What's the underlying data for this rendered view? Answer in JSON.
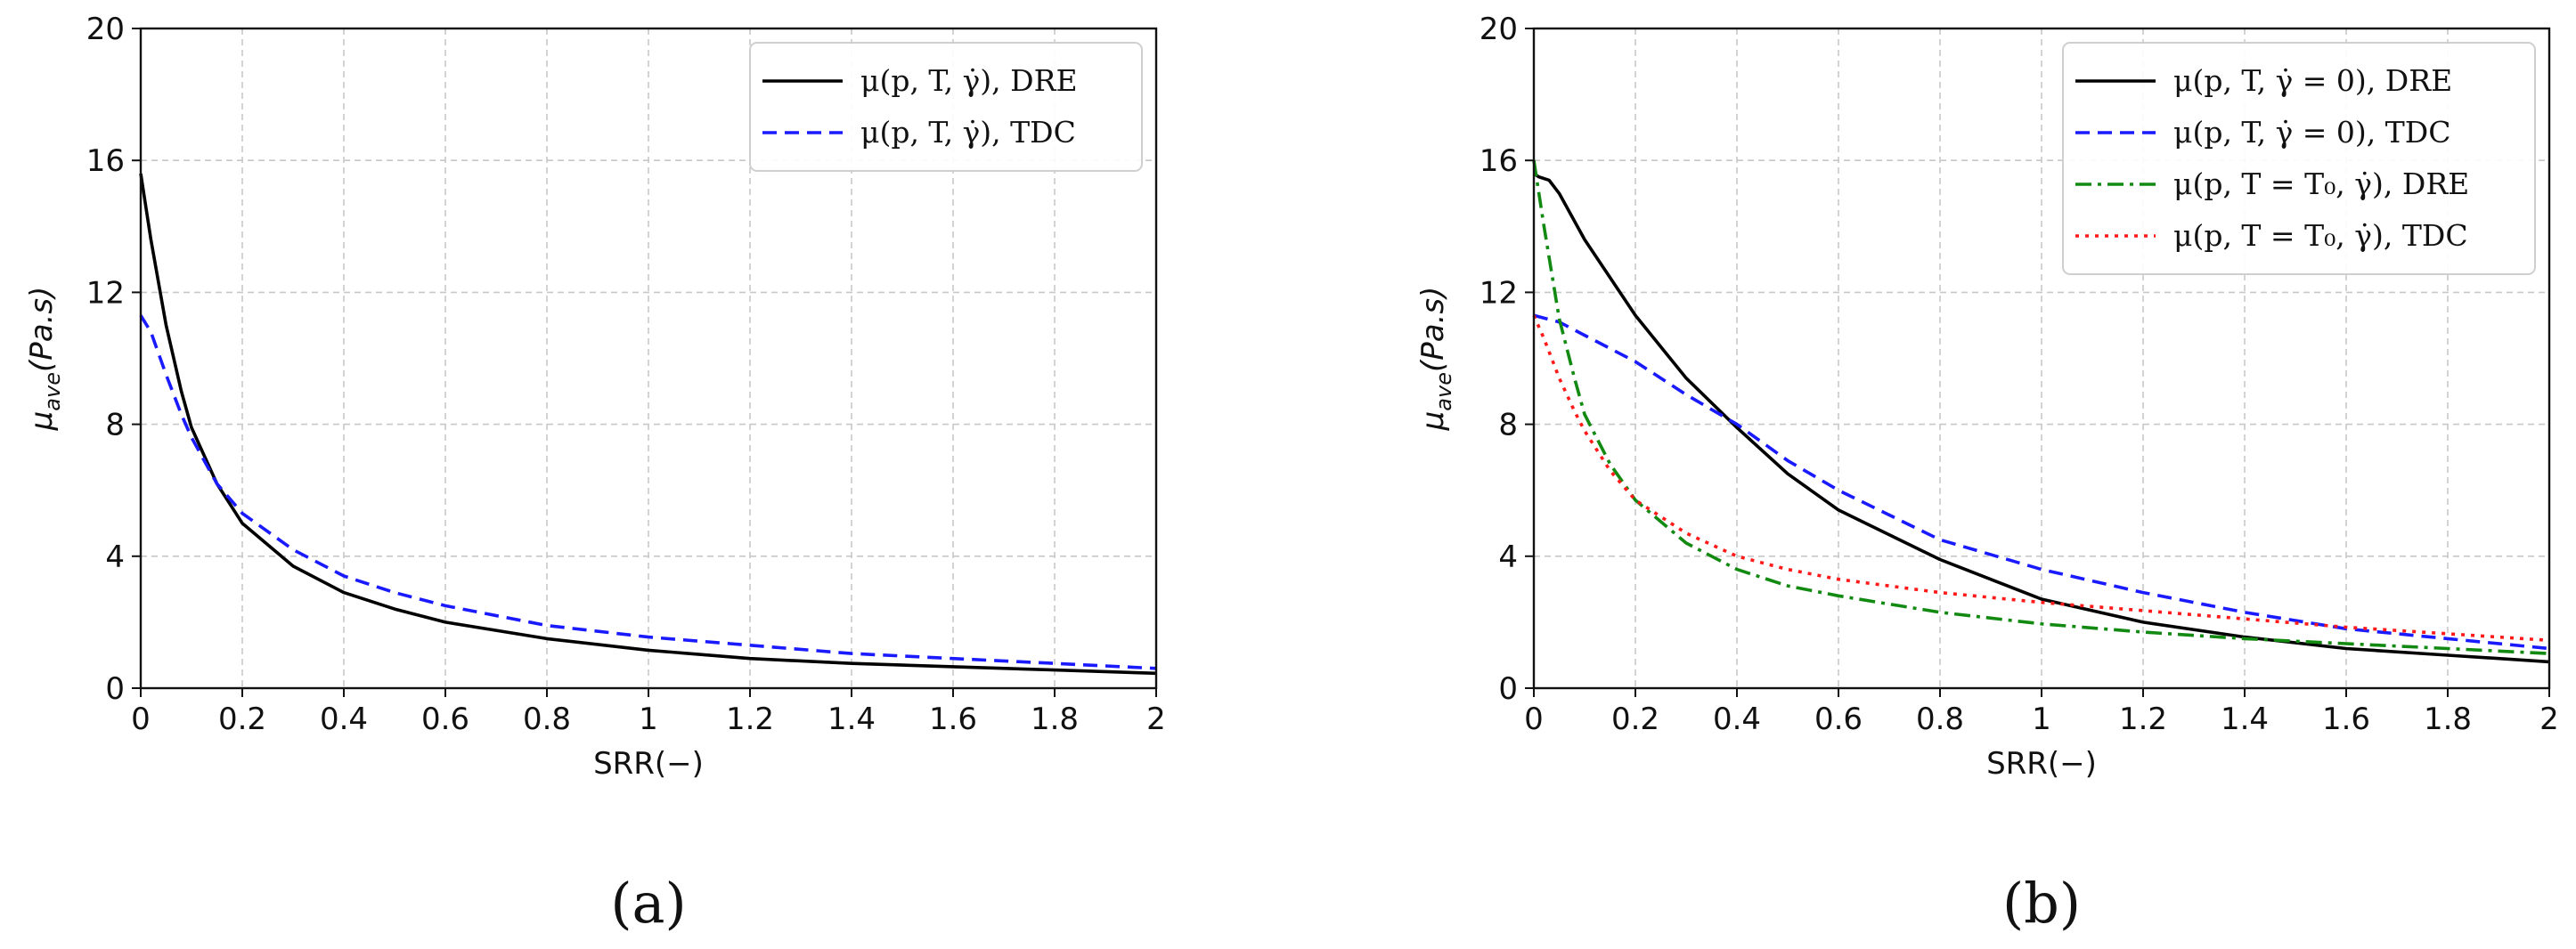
{
  "chart_data": [
    {
      "type": "line",
      "panel_label": "(a)",
      "xlabel": "SRR(−)",
      "ylabel": "μ_ave(Pa.s)",
      "ylabel_main": "μ",
      "ylabel_sub": "ave",
      "ylabel_rest": "(Pa.s)",
      "xlim": [
        0,
        2
      ],
      "ylim": [
        0,
        20
      ],
      "x_ticks": [
        "0",
        "0.2",
        "0.4",
        "0.6",
        "0.8",
        "1",
        "1.2",
        "1.4",
        "1.6",
        "1.8",
        "2"
      ],
      "y_ticks": [
        "0",
        "4",
        "8",
        "12",
        "16",
        "20"
      ],
      "grid": true,
      "legend_position": "top-right",
      "series": [
        {
          "name": "μ(p, T, γ̇), DRE",
          "color": "#000000",
          "dash": "solid",
          "x": [
            0,
            0.02,
            0.05,
            0.08,
            0.1,
            0.15,
            0.2,
            0.3,
            0.4,
            0.5,
            0.6,
            0.8,
            1.0,
            1.2,
            1.4,
            1.6,
            1.8,
            2.0
          ],
          "y": [
            15.6,
            13.6,
            11.0,
            9.0,
            7.9,
            6.2,
            5.0,
            3.7,
            2.9,
            2.4,
            2.0,
            1.5,
            1.15,
            0.9,
            0.75,
            0.65,
            0.55,
            0.45
          ]
        },
        {
          "name": "μ(p, T, γ̇), TDC",
          "color": "#1a1aff",
          "dash": "dashed",
          "x": [
            0,
            0.02,
            0.05,
            0.08,
            0.1,
            0.15,
            0.2,
            0.3,
            0.4,
            0.5,
            0.6,
            0.8,
            1.0,
            1.2,
            1.4,
            1.6,
            1.8,
            2.0
          ],
          "y": [
            11.3,
            10.8,
            9.5,
            8.3,
            7.6,
            6.2,
            5.3,
            4.2,
            3.4,
            2.9,
            2.5,
            1.9,
            1.55,
            1.3,
            1.05,
            0.9,
            0.75,
            0.6
          ]
        }
      ]
    },
    {
      "type": "line",
      "panel_label": "(b)",
      "xlabel": "SRR(−)",
      "ylabel": "μ_ave(Pa.s)",
      "ylabel_main": "μ",
      "ylabel_sub": "ave",
      "ylabel_rest": "(Pa.s)",
      "xlim": [
        0,
        2
      ],
      "ylim": [
        0,
        20
      ],
      "x_ticks": [
        "0",
        "0.2",
        "0.4",
        "0.6",
        "0.8",
        "1",
        "1.2",
        "1.4",
        "1.6",
        "1.8",
        "2"
      ],
      "y_ticks": [
        "0",
        "4",
        "8",
        "12",
        "16",
        "20"
      ],
      "grid": true,
      "legend_position": "top-right",
      "series": [
        {
          "name": "μ(p, T, γ̇ = 0), DRE",
          "color": "#000000",
          "dash": "solid",
          "x": [
            0,
            0.01,
            0.03,
            0.05,
            0.1,
            0.2,
            0.3,
            0.4,
            0.5,
            0.6,
            0.8,
            1.0,
            1.2,
            1.4,
            1.6,
            1.8,
            2.0
          ],
          "y": [
            15.6,
            15.5,
            15.4,
            15.0,
            13.6,
            11.3,
            9.4,
            7.9,
            6.5,
            5.4,
            3.9,
            2.7,
            2.0,
            1.55,
            1.2,
            1.0,
            0.8
          ]
        },
        {
          "name": "μ(p, T, γ̇ = 0), TDC",
          "color": "#1a1aff",
          "dash": "dashed",
          "x": [
            0,
            0.05,
            0.1,
            0.2,
            0.3,
            0.4,
            0.5,
            0.6,
            0.8,
            1.0,
            1.2,
            1.4,
            1.6,
            1.8,
            2.0
          ],
          "y": [
            11.3,
            11.1,
            10.7,
            9.9,
            8.9,
            8.0,
            6.9,
            6.0,
            4.5,
            3.6,
            2.9,
            2.3,
            1.8,
            1.5,
            1.2
          ]
        },
        {
          "name": "μ(p, T = T₀, γ̇), DRE",
          "color": "#128a12",
          "dash": "dashdot",
          "x": [
            0,
            0.02,
            0.05,
            0.08,
            0.1,
            0.15,
            0.2,
            0.3,
            0.4,
            0.5,
            0.6,
            0.8,
            1.0,
            1.2,
            1.4,
            1.6,
            1.8,
            2.0
          ],
          "y": [
            16.0,
            14.0,
            11.2,
            9.4,
            8.3,
            6.8,
            5.7,
            4.4,
            3.6,
            3.1,
            2.8,
            2.3,
            1.95,
            1.7,
            1.5,
            1.35,
            1.2,
            1.05
          ]
        },
        {
          "name": "μ(p, T = T₀, γ̇), TDC",
          "color": "#ff1a1a",
          "dash": "dotted",
          "x": [
            0,
            0.02,
            0.05,
            0.08,
            0.1,
            0.15,
            0.2,
            0.3,
            0.4,
            0.5,
            0.6,
            0.8,
            1.0,
            1.2,
            1.4,
            1.6,
            1.8,
            2.0
          ],
          "y": [
            11.3,
            10.6,
            9.4,
            8.4,
            7.8,
            6.6,
            5.7,
            4.7,
            4.0,
            3.6,
            3.3,
            2.9,
            2.6,
            2.35,
            2.1,
            1.85,
            1.65,
            1.45
          ]
        }
      ]
    }
  ]
}
